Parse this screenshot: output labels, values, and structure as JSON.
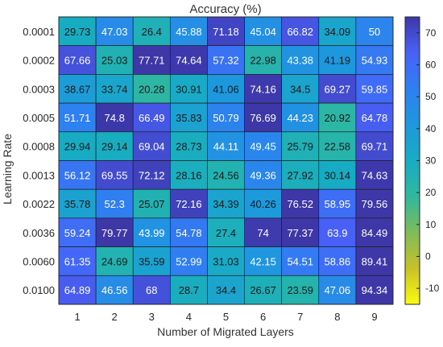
{
  "chart_data": {
    "type": "heatmap",
    "title": "Accuracy (%)",
    "xlabel": "Number of Migrated Layers",
    "ylabel": "Learning Rate",
    "x_categories": [
      "1",
      "2",
      "3",
      "4",
      "5",
      "6",
      "7",
      "8",
      "9"
    ],
    "y_categories": [
      "0.0001",
      "0.0002",
      "0.0003",
      "0.0005",
      "0.0008",
      "0.0013",
      "0.0022",
      "0.0036",
      "0.0060",
      "0.0100"
    ],
    "cell_labels": [
      [
        "29.73",
        "47.03",
        "26.4",
        "45.88",
        "71.18",
        "45.04",
        "66.82",
        "34.09",
        "50"
      ],
      [
        "67.66",
        "25.03",
        "77.71",
        "74.64",
        "57.32",
        "22.98",
        "43.38",
        "41.19",
        "54.93"
      ],
      [
        "38.67",
        "33.74",
        "20.28",
        "30.91",
        "41.06",
        "74.16",
        "34.5",
        "69.27",
        "59.85"
      ],
      [
        "51.71",
        "74.8",
        "66.49",
        "35.83",
        "50.79",
        "76.69",
        "44.23",
        "20.92",
        "64.78"
      ],
      [
        "29.94",
        "29.14",
        "69.04",
        "28.73",
        "44.11",
        "49.45",
        "25.79",
        "22.58",
        "69.71"
      ],
      [
        "56.12",
        "69.55",
        "72.12",
        "28.16",
        "24.56",
        "49.36",
        "27.92",
        "30.14",
        "74.63"
      ],
      [
        "35.78",
        "52.3",
        "25.07",
        "72.16",
        "34.39",
        "40.26",
        "76.52",
        "58.95",
        "79.56"
      ],
      [
        "59.24",
        "79.77",
        "43.99",
        "54.78",
        "27.4",
        "74",
        "77.37",
        "63.9",
        "84.49"
      ],
      [
        "61.35",
        "24.69",
        "35.59",
        "52.99",
        "31.03",
        "42.15",
        "54.51",
        "58.86",
        "89.41"
      ],
      [
        "64.89",
        "46.56",
        "68",
        "28.7",
        "34.4",
        "26.67",
        "23.59",
        "47.06",
        "94.34"
      ]
    ],
    "colorbar": {
      "ticks": [
        "-10",
        "0",
        "10",
        "20",
        "30",
        "40",
        "50",
        "60",
        "70"
      ],
      "vmin": -15,
      "vmax": 75,
      "colormap": "parula-reversed",
      "stops": [
        "#f9fb0e",
        "#c8c129",
        "#7fbb5a",
        "#30b89e",
        "#17acc4",
        "#1e98dd",
        "#2f7ff1",
        "#4961f8",
        "#3d37a8"
      ]
    },
    "grid": true
  }
}
